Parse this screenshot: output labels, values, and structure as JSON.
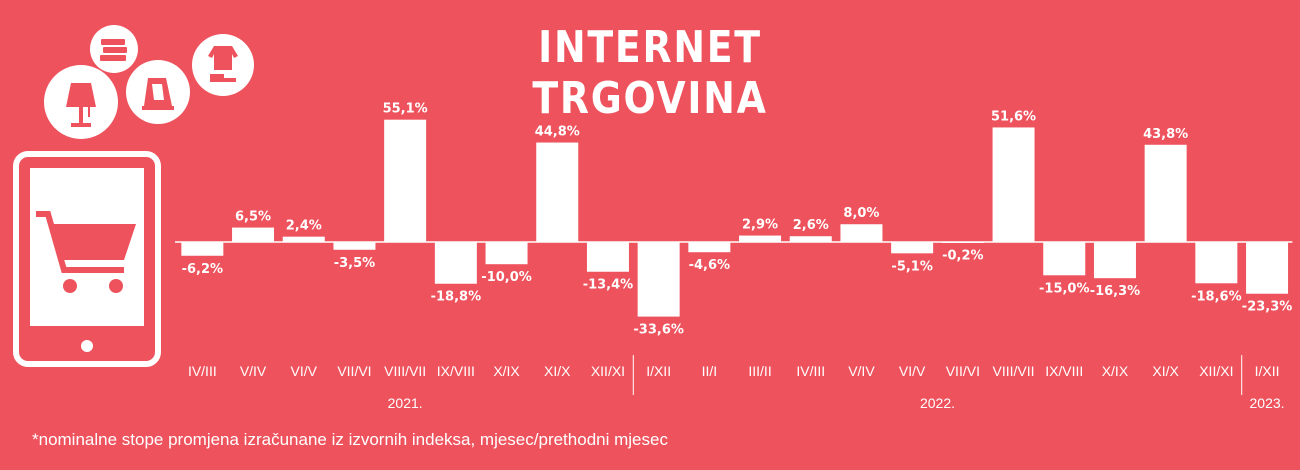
{
  "title": "INTERNET TRGOVINA",
  "footnote": "*nominalne stope promjena izračunane iz izvornih indeksa, mjesec/prethodni mjesec",
  "icons": [
    "lamp-icon",
    "books-icon",
    "iron-icon",
    "clothes-icon",
    "tablet-icon",
    "shopping-cart-icon"
  ],
  "chart_data": {
    "type": "bar",
    "title": "INTERNET TRGOVINA",
    "unit": "%",
    "categories": [
      "IV/III",
      "V/IV",
      "VI/V",
      "VII/VI",
      "VIII/VII",
      "IX/VIII",
      "X/IX",
      "XI/X",
      "XII/XI",
      "I/XII",
      "II/I",
      "III/II",
      "IV/III",
      "V/IV",
      "VI/V",
      "VII/VI",
      "VIII/VII",
      "IX/VIII",
      "X/IX",
      "XI/X",
      "XII/XI",
      "I/XII"
    ],
    "values": [
      -6.2,
      6.5,
      2.4,
      -3.5,
      55.1,
      -18.8,
      -10.0,
      44.8,
      -13.4,
      -33.6,
      -4.6,
      2.9,
      2.6,
      8.0,
      -5.1,
      -0.2,
      51.6,
      -15.0,
      -16.3,
      43.8,
      -18.6,
      -23.3
    ],
    "labels": [
      "-6,2%",
      "6,5%",
      "2,4%",
      "-3,5%",
      "55,1%",
      "-18,8%",
      "-10,0%",
      "44,8%",
      "-13,4%",
      "-33,6%",
      "-4,6%",
      "2,9%",
      "2,6%",
      "8,0%",
      "-5,1%",
      "-0,2%",
      "51,6%",
      "-15,0%",
      "-16,3%",
      "43,8%",
      "-18,6%",
      "-23,3%"
    ],
    "years": [
      {
        "label": "2021.",
        "from": 0,
        "to": 8
      },
      {
        "label": "2022.",
        "from": 9,
        "to": 20
      },
      {
        "label": "2023.",
        "from": 21,
        "to": 21
      }
    ],
    "colors": {
      "background": "#ee525c",
      "bar": "#ffffff",
      "text": "#ffffff"
    }
  }
}
